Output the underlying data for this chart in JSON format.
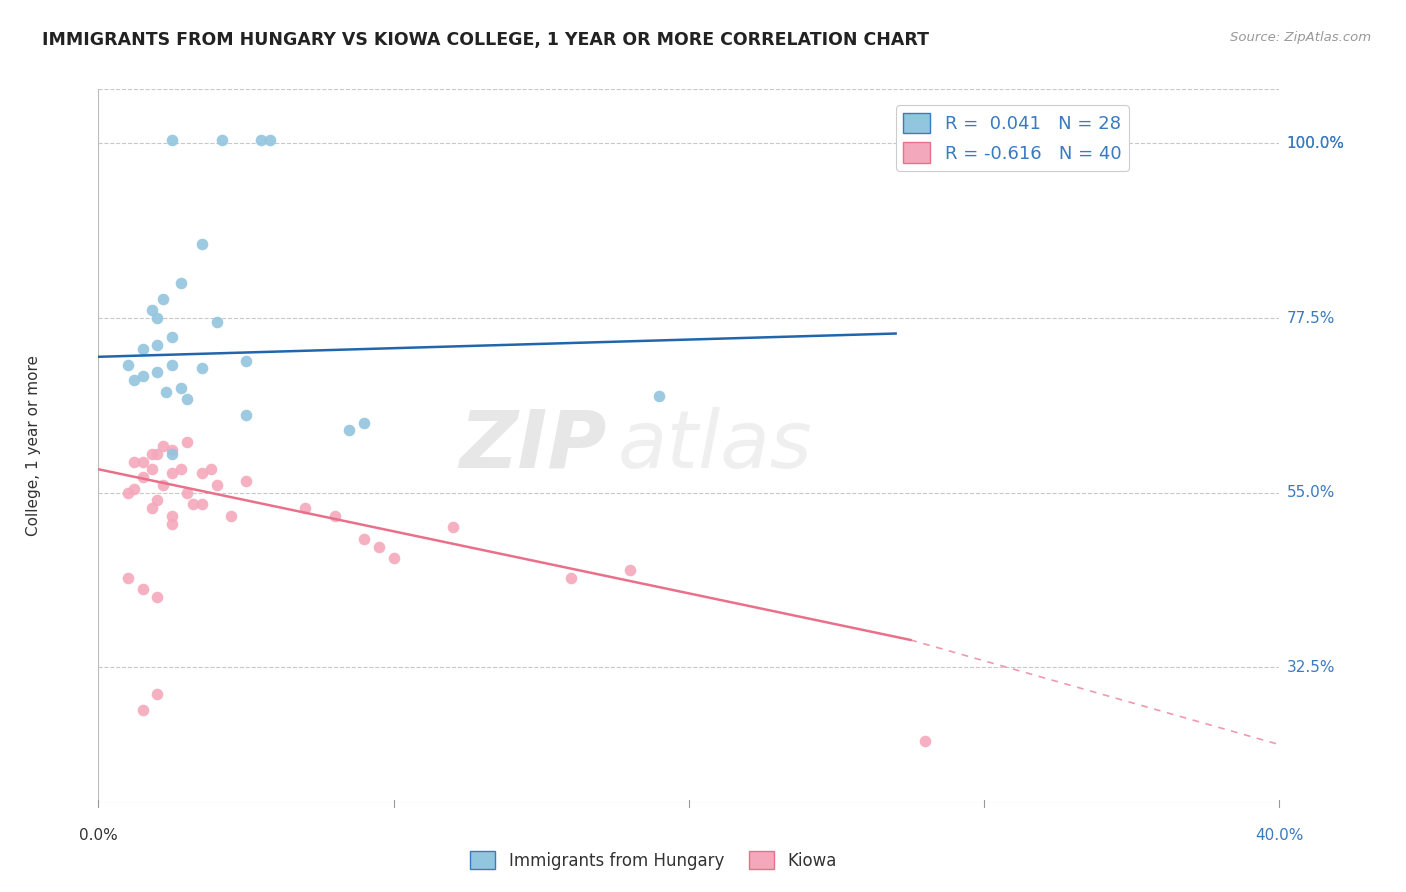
{
  "title": "IMMIGRANTS FROM HUNGARY VS KIOWA COLLEGE, 1 YEAR OR MORE CORRELATION CHART",
  "source": "Source: ZipAtlas.com",
  "ylabel": "College, 1 year or more",
  "xlim": [
    0.0,
    40.0
  ],
  "ylim": [
    15.0,
    107.0
  ],
  "yticks": [
    32.5,
    55.0,
    77.5,
    100.0
  ],
  "ytick_labels": [
    "32.5%",
    "55.0%",
    "77.5%",
    "100.0%"
  ],
  "blue_color": "#92c5de",
  "pink_color": "#f4a8bb",
  "blue_line_color": "#2166ac",
  "pink_line_color": "#e8708a",
  "blue_scatter_x": [
    2.5,
    4.2,
    5.5,
    5.8,
    3.5,
    2.8,
    2.2,
    1.8,
    2.0,
    4.0,
    2.5,
    2.0,
    1.5,
    5.0,
    2.5,
    3.5,
    2.0,
    1.5,
    1.2,
    2.8,
    2.3,
    3.0,
    5.0,
    9.0,
    8.5,
    19.0,
    2.5,
    1.0
  ],
  "blue_scatter_y": [
    100.5,
    100.5,
    100.5,
    100.5,
    87.0,
    82.0,
    80.0,
    78.5,
    77.5,
    77.0,
    75.0,
    74.0,
    73.5,
    72.0,
    71.5,
    71.0,
    70.5,
    70.0,
    69.5,
    68.5,
    68.0,
    67.0,
    65.0,
    64.0,
    63.0,
    67.5,
    60.0,
    71.5
  ],
  "pink_scatter_x": [
    1.0,
    1.5,
    1.8,
    2.0,
    2.2,
    2.5,
    1.2,
    2.8,
    3.0,
    3.2,
    3.5,
    3.8,
    4.0,
    1.5,
    2.0,
    2.5,
    3.0,
    5.0,
    7.0,
    8.0,
    1.0,
    1.5,
    2.0,
    2.5,
    1.2,
    1.8,
    2.2,
    3.5,
    4.5,
    9.0,
    9.5,
    10.0,
    12.0,
    16.0,
    18.0,
    2.0,
    1.5,
    2.5,
    28.0,
    1.8
  ],
  "pink_scatter_y": [
    55.0,
    57.0,
    58.0,
    54.0,
    56.0,
    57.5,
    55.5,
    58.0,
    55.0,
    53.5,
    57.5,
    58.0,
    56.0,
    59.0,
    60.0,
    60.5,
    61.5,
    56.5,
    53.0,
    52.0,
    44.0,
    42.5,
    41.5,
    51.0,
    59.0,
    60.0,
    61.0,
    53.5,
    52.0,
    49.0,
    48.0,
    46.5,
    50.5,
    44.0,
    45.0,
    29.0,
    27.0,
    52.0,
    23.0,
    53.0
  ],
  "blue_trend": [
    0.0,
    27.0,
    72.5,
    75.5
  ],
  "pink_trend_solid": [
    0.0,
    27.5,
    58.0,
    36.0
  ],
  "pink_trend_dash": [
    27.5,
    40.0,
    36.0,
    22.5
  ],
  "watermark_zip": "ZIP",
  "watermark_atlas": "atlas",
  "background_color": "#ffffff",
  "grid_color": "#c8c8c8",
  "legend_blue_label": "R =  0.041   N = 28",
  "legend_pink_label": "R = -0.616   N = 40",
  "bottom_legend_blue": "Immigrants from Hungary",
  "bottom_legend_pink": "Kiowa"
}
